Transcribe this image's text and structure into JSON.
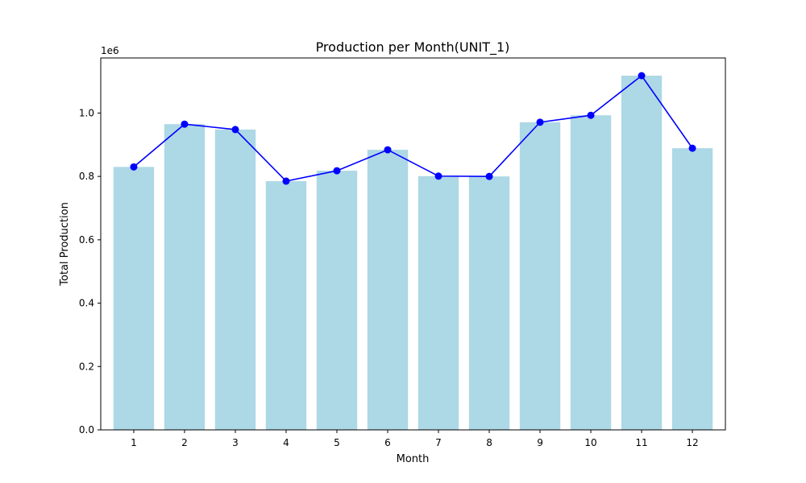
{
  "chart_data": {
    "type": "bar",
    "title": "Production per Month(UNIT_1)",
    "xlabel": "Month",
    "ylabel": "Total Production",
    "y_scale_label": "1e6",
    "categories": [
      "1",
      "2",
      "3",
      "4",
      "5",
      "6",
      "7",
      "8",
      "9",
      "10",
      "11",
      "12"
    ],
    "values": [
      830000,
      965000,
      948000,
      785000,
      818000,
      884000,
      801000,
      800000,
      971000,
      993000,
      1118000,
      889000
    ],
    "y_ticks": [
      "0.0",
      "0.2",
      "0.4",
      "0.6",
      "0.8",
      "1.0"
    ],
    "y_tick_values": [
      0,
      200000,
      400000,
      600000,
      800000,
      1000000
    ],
    "ylim": [
      0,
      1173900
    ],
    "grid": false,
    "overlay": "line with markers over bars",
    "colors": {
      "bar": "#add8e6",
      "line": "#0000ff",
      "marker": "#0000ff",
      "axes": "#000000"
    }
  }
}
